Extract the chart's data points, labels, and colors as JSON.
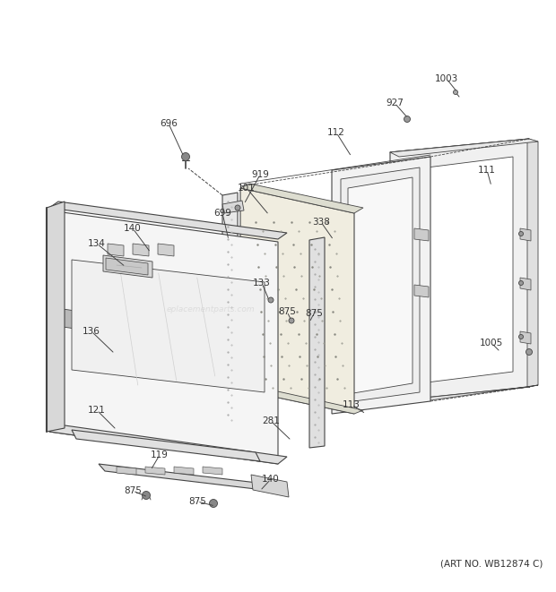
{
  "art_no": "(ART NO. WB12874 C)",
  "background_color": "#ffffff",
  "line_color": "#444444",
  "label_color": "#333333",
  "figsize": [
    6.2,
    6.61
  ],
  "dpi": 100,
  "watermark": "eplacementparts.com",
  "parts": [
    [
      "696",
      188,
      138,
      205,
      175
    ],
    [
      "699",
      248,
      238,
      255,
      268
    ],
    [
      "101",
      275,
      210,
      300,
      240
    ],
    [
      "140",
      148,
      255,
      168,
      282
    ],
    [
      "134",
      108,
      272,
      140,
      298
    ],
    [
      "136",
      102,
      370,
      128,
      395
    ],
    [
      "121",
      108,
      458,
      130,
      480
    ],
    [
      "119",
      178,
      508,
      168,
      525
    ],
    [
      "875",
      148,
      548,
      165,
      555
    ],
    [
      "875",
      220,
      560,
      240,
      565
    ],
    [
      "140",
      302,
      535,
      290,
      548
    ],
    [
      "281",
      302,
      470,
      325,
      492
    ],
    [
      "113",
      392,
      452,
      408,
      462
    ],
    [
      "133",
      292,
      316,
      300,
      335
    ],
    [
      "875",
      320,
      348,
      325,
      358
    ],
    [
      "919",
      290,
      195,
      272,
      228
    ],
    [
      "338",
      358,
      248,
      372,
      268
    ],
    [
      "112",
      375,
      148,
      392,
      175
    ],
    [
      "927",
      440,
      115,
      455,
      132
    ],
    [
      "1003",
      498,
      88,
      510,
      103
    ],
    [
      "111",
      543,
      190,
      548,
      208
    ],
    [
      "1005",
      548,
      383,
      558,
      393
    ],
    [
      "875",
      350,
      350,
      345,
      360
    ]
  ]
}
